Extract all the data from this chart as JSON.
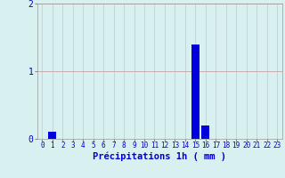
{
  "hours": [
    0,
    1,
    2,
    3,
    4,
    5,
    6,
    7,
    8,
    9,
    10,
    11,
    12,
    13,
    14,
    15,
    16,
    17,
    18,
    19,
    20,
    21,
    22,
    23
  ],
  "values": [
    0,
    0.1,
    0,
    0,
    0,
    0,
    0,
    0,
    0,
    0,
    0,
    0,
    0,
    0,
    0,
    1.4,
    0.2,
    0,
    0,
    0,
    0,
    0,
    0,
    0
  ],
  "bar_color": "#0000dd",
  "background_color": "#d8f0f0",
  "grid_color_h": "#c8a0a0",
  "grid_color_v": "#b8cccc",
  "xlabel": "Précipitations 1h ( mm )",
  "ylim": [
    0,
    2
  ],
  "yticks": [
    0,
    1,
    2
  ],
  "xlim": [
    -0.5,
    23.5
  ],
  "tick_color": "#0000cc",
  "xlabel_fontsize": 7.5,
  "tick_fontsize": 5.5
}
